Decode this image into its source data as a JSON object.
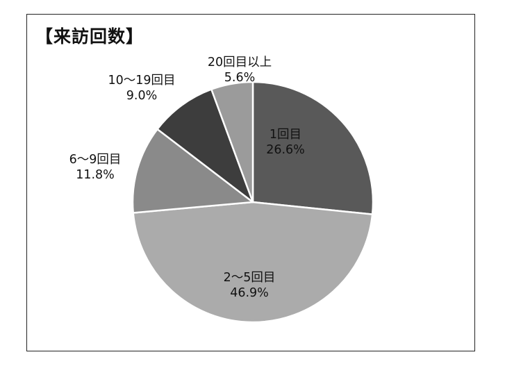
{
  "chart_data": {
    "type": "pie",
    "title": "【来訪回数】",
    "slices": [
      {
        "label": "1回目",
        "value": 26.6,
        "display": "26.6%",
        "color": "#595959"
      },
      {
        "label": "2〜5回目",
        "value": 46.9,
        "display": "46.9%",
        "color": "#ababab"
      },
      {
        "label": "6〜9回目",
        "value": 11.8,
        "display": "11.8%",
        "color": "#8a8a8a"
      },
      {
        "label": "10〜19回目",
        "value": 9.0,
        "display": "9.0%",
        "color": "#3d3d3d"
      },
      {
        "label": "20回目以上",
        "value": 5.6,
        "display": "5.6%",
        "color": "#9b9b9b"
      }
    ],
    "start": "12 o'clock",
    "direction": "clockwise"
  }
}
